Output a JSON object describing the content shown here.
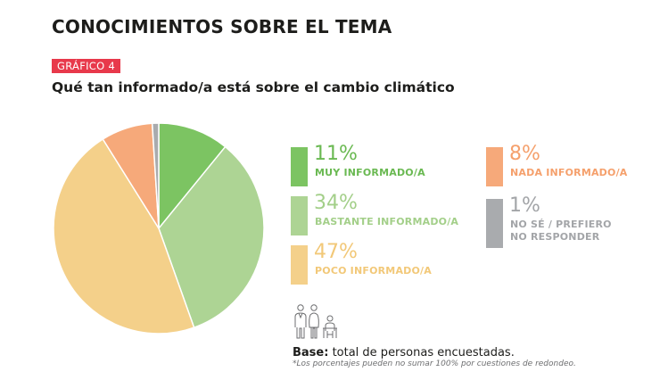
{
  "header": {
    "title": "CONOCIMIENTOS SOBRE EL TEMA",
    "badge": "GRÁFICO 4",
    "subtitle": "Qué tan informado/a está sobre el cambio climático"
  },
  "chart_data": {
    "type": "pie",
    "title": "Qué tan informado/a está sobre el cambio climático",
    "start": "12 o'clock, clockwise",
    "slices": [
      {
        "label": "MUY INFORMADO/A",
        "value": 11,
        "display": "11%",
        "color": "#7cc462"
      },
      {
        "label": "BASTANTE INFORMADO/A",
        "value": 34,
        "display": "34%",
        "color": "#add494"
      },
      {
        "label": "POCO INFORMADO/A",
        "value": 47,
        "display": "47%",
        "color": "#f4d08a"
      },
      {
        "label": "NADA INFORMADO/A",
        "value": 8,
        "display": "8%",
        "color": "#f6a97a"
      },
      {
        "label": "NO SÉ / PREFIERO NO RESPONDER",
        "value": 1,
        "display": "1%",
        "color": "#a9abae"
      }
    ],
    "legend_placement": "right"
  },
  "legend": {
    "items": [
      {
        "pct": "11%",
        "label": "MUY INFORMADO/A",
        "color": "#7cc462",
        "text_color": "#6ab952"
      },
      {
        "pct": "34%",
        "label": "BASTANTE INFORMADO/A",
        "color": "#add494",
        "text_color": "#a3cf89"
      },
      {
        "pct": "47%",
        "label": "POCO INFORMADO/A",
        "color": "#f4d08a",
        "text_color": "#f2c878"
      },
      {
        "pct": "8%",
        "label": "NADA INFORMADO/A",
        "color": "#f6a97a",
        "text_color": "#f5a06c"
      },
      {
        "pct": "1%",
        "label_line1": "NO SÉ / PREFIERO",
        "label_line2": "NO RESPONDER",
        "color": "#a9abae",
        "text_color": "#a3a5a8"
      }
    ]
  },
  "footer": {
    "base_label": "Base:",
    "base_text": " total de personas encuestadas.",
    "note": "*Los porcentajes pueden no sumar 100% por cuestiones de redondeo.",
    "icon": "family-icon"
  }
}
